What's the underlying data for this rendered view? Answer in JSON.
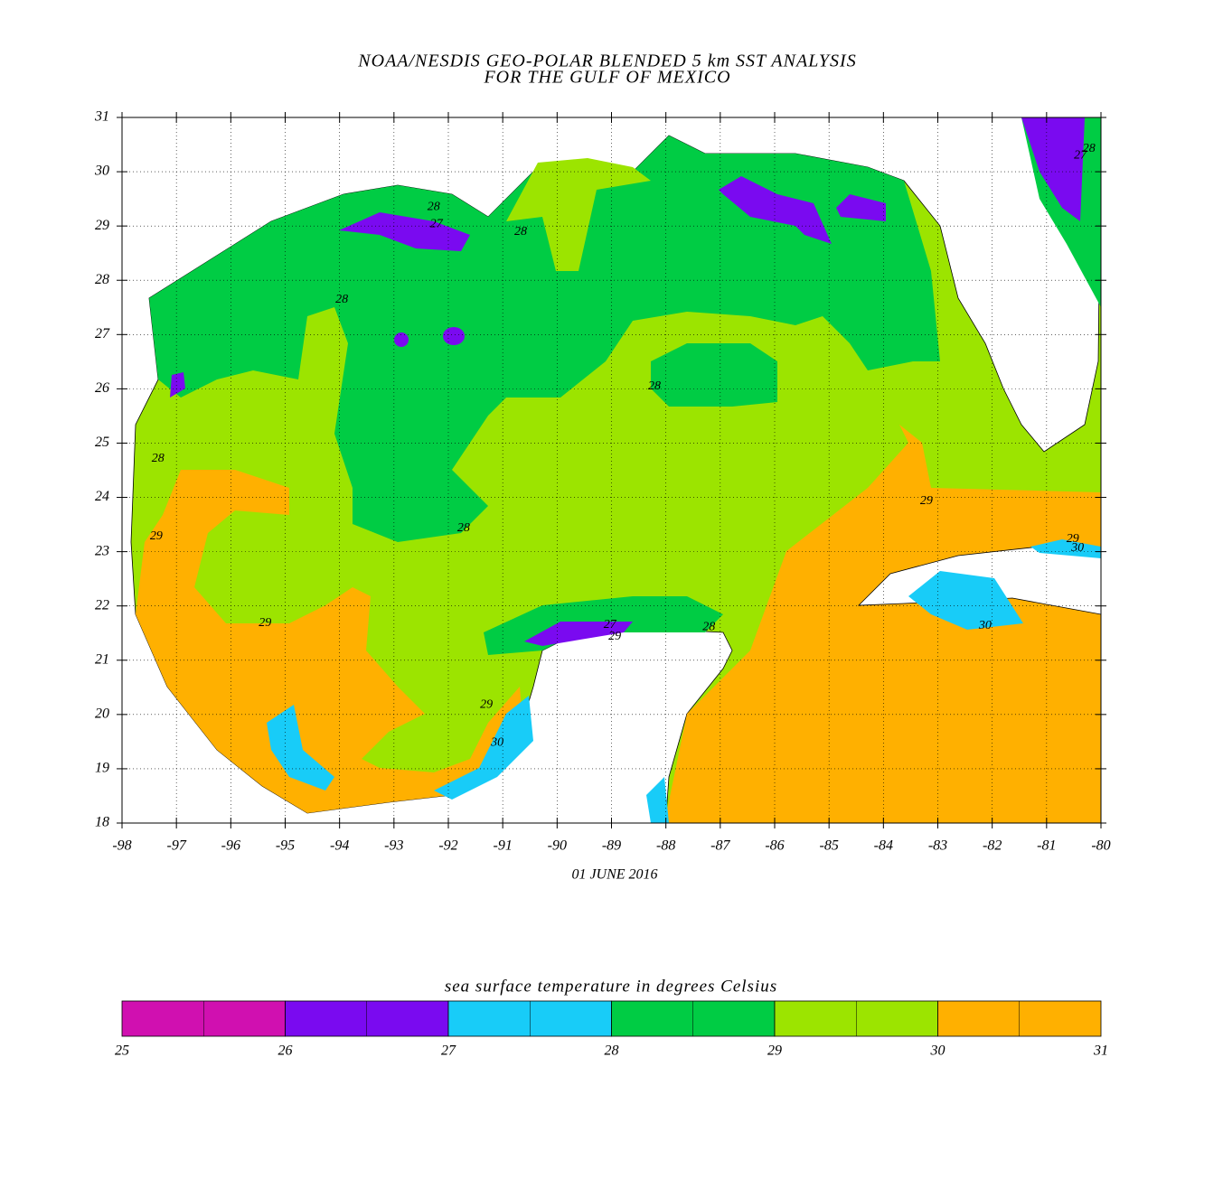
{
  "chart_data": {
    "type": "map",
    "title": "NOAA/NESDIS GEO-POLAR BLENDED 5 km SST ANALYSIS",
    "subtitle": "FOR THE GULF OF MEXICO",
    "date": "01 JUNE 2016",
    "xlim": [
      -98,
      -80
    ],
    "ylim": [
      18,
      31
    ],
    "xticks": [
      -98,
      -97,
      -96,
      -95,
      -94,
      -93,
      -92,
      -91,
      -90,
      -89,
      -88,
      -87,
      -86,
      -85,
      -84,
      -83,
      -82,
      -81,
      -80
    ],
    "yticks": [
      18,
      19,
      20,
      21,
      22,
      23,
      24,
      25,
      26,
      27,
      28,
      29,
      30,
      31
    ],
    "grid": true,
    "colorbar": {
      "label": "sea surface temperature in degrees Celsius",
      "ticks": [
        25,
        26,
        27,
        28,
        29,
        30,
        31
      ],
      "colors": [
        "#d010b0",
        "#7a0af0",
        "#18ccf8",
        "#00cc44",
        "#9ce400",
        "#ffb000"
      ]
    },
    "contour_labels": [
      {
        "lon": -92.27,
        "lat": 29.35,
        "value": 28
      },
      {
        "lon": -92.22,
        "lat": 29.03,
        "value": 27
      },
      {
        "lon": -90.67,
        "lat": 28.89,
        "value": 28
      },
      {
        "lon": -93.96,
        "lat": 27.64,
        "value": 28
      },
      {
        "lon": -88.21,
        "lat": 26.04,
        "value": 28
      },
      {
        "lon": -97.34,
        "lat": 24.71,
        "value": 28
      },
      {
        "lon": -97.37,
        "lat": 23.28,
        "value": 29
      },
      {
        "lon": -91.72,
        "lat": 23.43,
        "value": 28
      },
      {
        "lon": -95.37,
        "lat": 21.68,
        "value": 29
      },
      {
        "lon": -89.03,
        "lat": 21.65,
        "value": 27
      },
      {
        "lon": -88.94,
        "lat": 21.43,
        "value": 29
      },
      {
        "lon": -87.21,
        "lat": 21.61,
        "value": 28
      },
      {
        "lon": -91.3,
        "lat": 20.18,
        "value": 29
      },
      {
        "lon": -91.1,
        "lat": 19.48,
        "value": 30
      },
      {
        "lon": -83.21,
        "lat": 23.93,
        "value": 29
      },
      {
        "lon": -80.52,
        "lat": 23.23,
        "value": 29
      },
      {
        "lon": -80.43,
        "lat": 23.06,
        "value": 30
      },
      {
        "lon": -82.13,
        "lat": 21.63,
        "value": 30
      },
      {
        "lon": -80.22,
        "lat": 30.42,
        "value": 28
      },
      {
        "lon": -80.38,
        "lat": 30.3,
        "value": 27
      }
    ]
  }
}
